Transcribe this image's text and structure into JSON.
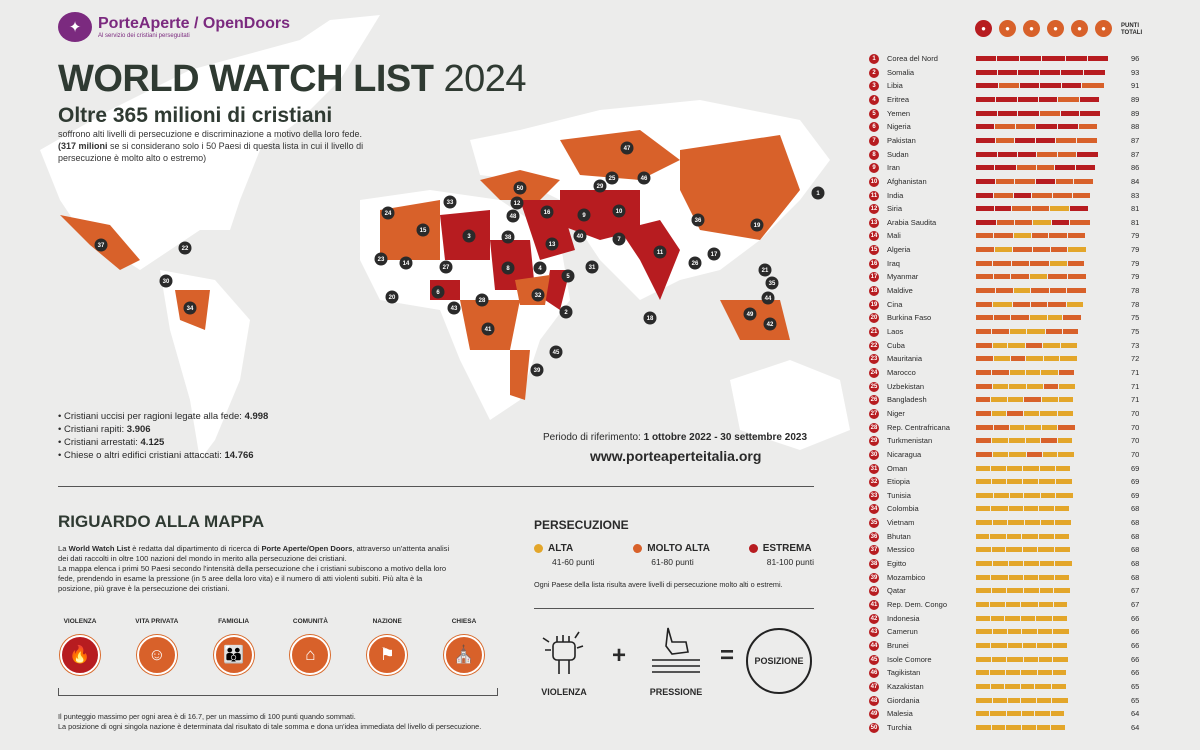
{
  "brand": {
    "name": "PorteAperte / OpenDoors",
    "tagline": "Al servizio dei cristiani perseguitati"
  },
  "title": {
    "main": "WORLD WATCH LIST",
    "year": "2024"
  },
  "headline": "Oltre 365 milioni di cristiani",
  "subtitle": {
    "line1": "soffrono alti livelli di persecuzione e discriminazione a motivo della loro fede.",
    "strong": "(317 milioni",
    "line2": " se si considerano solo i 50 Paesi di questa lista in cui il livello di persecuzione è molto alto o estremo)"
  },
  "stats": [
    {
      "label": "• Cristiani uccisi per ragioni legate alla fede: ",
      "value": "4.998"
    },
    {
      "label": "• Cristiani rapiti: ",
      "value": "3.906"
    },
    {
      "label": "• Cristiani arrestati: ",
      "value": "4.125"
    },
    {
      "label": "• Chiese o altri edifici cristiani attaccati: ",
      "value": "14.766"
    }
  ],
  "period": {
    "label": "Periodo di riferimento: ",
    "value": "1 ottobre 2022 - 30 settembre 2023"
  },
  "website": "www.porteaperteitalia.org",
  "about": {
    "title": "RIGUARDO ALLA MAPPA",
    "p1a": "La ",
    "p1b": "World Watch List",
    "p1c": " è redatta dal dipartimento di ricerca di ",
    "p1d": "Porte Aperte/Open Doors",
    "p1e": ", attraverso un'attenta analisi dei dati raccolti in oltre 100 nazioni del mondo in merito alla persecuzione dei cristiani.",
    "p2": "La mappa elenca i primi 50 Paesi secondo l'intensità della persecuzione che i cristiani subiscono a motivo della loro fede, prendendo in esame la pressione (in 5 aree della loro vita) e il numero di atti violenti subiti. Più alta è la posizione, più grave è la persecuzione dei cristiani."
  },
  "pillars": [
    {
      "label": "VIOLENZA",
      "icon": "fire-icon",
      "glyph": "🔥",
      "color": "#b71c20"
    },
    {
      "label": "VITA PRIVATA",
      "icon": "person-icon",
      "glyph": "☺",
      "color": "#d8612a"
    },
    {
      "label": "FAMIGLIA",
      "icon": "family-icon",
      "glyph": "👪",
      "color": "#d8612a"
    },
    {
      "label": "COMUNITÀ",
      "icon": "houses-icon",
      "glyph": "⌂",
      "color": "#d8612a"
    },
    {
      "label": "NAZIONE",
      "icon": "flag-icon",
      "glyph": "⚑",
      "color": "#d8612a"
    },
    {
      "label": "CHIESA",
      "icon": "church-icon",
      "glyph": "⛪",
      "color": "#d8612a"
    }
  ],
  "footnote": {
    "line1": "Il punteggio massimo per ogni area è di 16.7, per un massimo di 100 punti quando sommati.",
    "line2": "La posizione di ogni singola nazione è determinata dal risultato di tale somma e dona un'idea immediata del livello di persecuzione."
  },
  "persecution": {
    "title": "PERSECUZIONE",
    "levels": [
      {
        "name": "ALTA",
        "range": "41-60 punti",
        "color": "#e3a62a"
      },
      {
        "name": "MOLTO ALTA",
        "range": "61-80 punti",
        "color": "#d8612a"
      },
      {
        "name": "ESTREMA",
        "range": "81-100 punti",
        "color": "#b71c20"
      }
    ],
    "note": "Ogni Paese della lista risulta avere livelli di persecuzione molto alti o estremi."
  },
  "formula": {
    "violence": "VIOLENZA",
    "plus": "+",
    "pressure": "PRESSIONE",
    "equals": "=",
    "position": "POSIZIONE"
  },
  "ranking": {
    "header_label_1": "PUNTI",
    "header_label_2": "TOTALI",
    "header_icons": [
      "fire-icon",
      "person-icon",
      "family-icon",
      "houses-icon",
      "flag-icon",
      "church-icon"
    ],
    "countries": [
      {
        "rank": "1",
        "name": "Corea del Nord",
        "score": "96"
      },
      {
        "rank": "2",
        "name": "Somalia",
        "score": "93"
      },
      {
        "rank": "3",
        "name": "Libia",
        "score": "91"
      },
      {
        "rank": "4",
        "name": "Eritrea",
        "score": "89"
      },
      {
        "rank": "5",
        "name": "Yemen",
        "score": "89"
      },
      {
        "rank": "6",
        "name": "Nigeria",
        "score": "88"
      },
      {
        "rank": "7",
        "name": "Pakistan",
        "score": "87"
      },
      {
        "rank": "8",
        "name": "Sudan",
        "score": "87"
      },
      {
        "rank": "9",
        "name": "Iran",
        "score": "86"
      },
      {
        "rank": "10",
        "name": "Afghanistan",
        "score": "84"
      },
      {
        "rank": "11",
        "name": "India",
        "score": "83"
      },
      {
        "rank": "12",
        "name": "Siria",
        "score": "81"
      },
      {
        "rank": "13",
        "name": "Arabia Saudita",
        "score": "81"
      },
      {
        "rank": "14",
        "name": "Mali",
        "score": "79"
      },
      {
        "rank": "15",
        "name": "Algeria",
        "score": "79"
      },
      {
        "rank": "16",
        "name": "Iraq",
        "score": "79"
      },
      {
        "rank": "17",
        "name": "Myanmar",
        "score": "79"
      },
      {
        "rank": "18",
        "name": "Maldive",
        "score": "78"
      },
      {
        "rank": "19",
        "name": "Cina",
        "score": "78"
      },
      {
        "rank": "20",
        "name": "Burkina Faso",
        "score": "75"
      },
      {
        "rank": "21",
        "name": "Laos",
        "score": "75"
      },
      {
        "rank": "22",
        "name": "Cuba",
        "score": "73"
      },
      {
        "rank": "23",
        "name": "Mauritania",
        "score": "72"
      },
      {
        "rank": "24",
        "name": "Marocco",
        "score": "71"
      },
      {
        "rank": "25",
        "name": "Uzbekistan",
        "score": "71"
      },
      {
        "rank": "26",
        "name": "Bangladesh",
        "score": "71"
      },
      {
        "rank": "27",
        "name": "Niger",
        "score": "70"
      },
      {
        "rank": "28",
        "name": "Rep. Centrafricana",
        "score": "70"
      },
      {
        "rank": "29",
        "name": "Turkmenistan",
        "score": "70"
      },
      {
        "rank": "30",
        "name": "Nicaragua",
        "score": "70"
      },
      {
        "rank": "31",
        "name": "Oman",
        "score": "69"
      },
      {
        "rank": "32",
        "name": "Etiopia",
        "score": "69"
      },
      {
        "rank": "33",
        "name": "Tunisia",
        "score": "69"
      },
      {
        "rank": "34",
        "name": "Colombia",
        "score": "68"
      },
      {
        "rank": "35",
        "name": "Vietnam",
        "score": "68"
      },
      {
        "rank": "36",
        "name": "Bhutan",
        "score": "68"
      },
      {
        "rank": "37",
        "name": "Messico",
        "score": "68"
      },
      {
        "rank": "38",
        "name": "Egitto",
        "score": "68"
      },
      {
        "rank": "39",
        "name": "Mozambico",
        "score": "68"
      },
      {
        "rank": "40",
        "name": "Qatar",
        "score": "67"
      },
      {
        "rank": "41",
        "name": "Rep. Dem. Congo",
        "score": "67"
      },
      {
        "rank": "42",
        "name": "Indonesia",
        "score": "66"
      },
      {
        "rank": "43",
        "name": "Camerun",
        "score": "66"
      },
      {
        "rank": "44",
        "name": "Brunei",
        "score": "66"
      },
      {
        "rank": "45",
        "name": "Isole Comore",
        "score": "66"
      },
      {
        "rank": "46",
        "name": "Tagikistan",
        "score": "66"
      },
      {
        "rank": "47",
        "name": "Kazakistan",
        "score": "65"
      },
      {
        "rank": "48",
        "name": "Giordania",
        "score": "65"
      },
      {
        "rank": "49",
        "name": "Malesia",
        "score": "64"
      },
      {
        "rank": "50",
        "name": "Turchia",
        "score": "64"
      }
    ]
  },
  "colors": {
    "extreme": "#b71c20",
    "very_high": "#d8612a",
    "high": "#e3a62a",
    "land": "#ffffff",
    "pin": "#2a2a2a"
  }
}
